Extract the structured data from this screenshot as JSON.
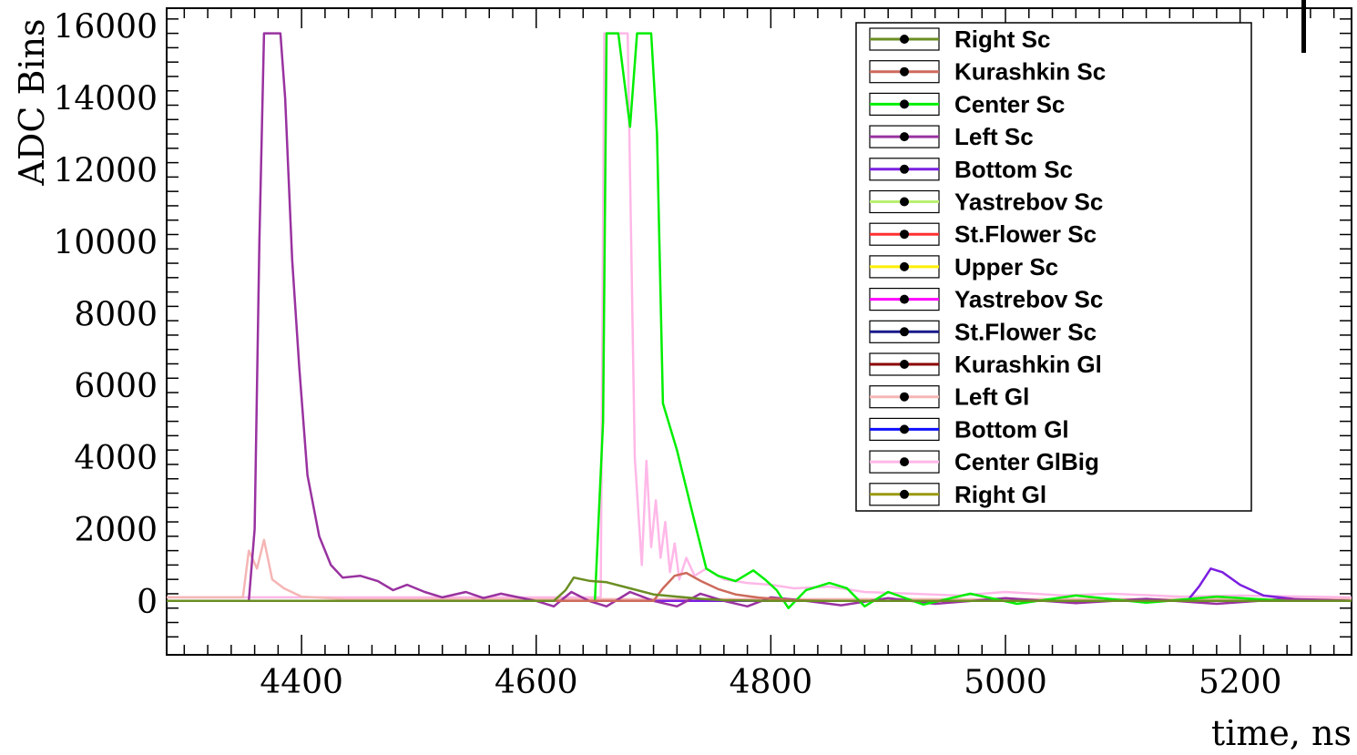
{
  "chart_data": {
    "type": "line",
    "xlabel": "time, ns",
    "ylabel": "ADC Bins",
    "xlim": [
      4285,
      5295
    ],
    "ylim": [
      -1500,
      16500
    ],
    "x_ticks": [
      4400,
      4600,
      4800,
      5000,
      5200
    ],
    "y_ticks": [
      0,
      2000,
      4000,
      6000,
      8000,
      10000,
      12000,
      14000,
      16000
    ],
    "x_tick_labels": [
      "4400",
      "4600",
      "4800",
      "5000",
      "5200"
    ],
    "y_tick_labels": [
      "0",
      "2000",
      "4000",
      "6000",
      "8000",
      "10000",
      "12000",
      "14000",
      "16000"
    ],
    "grid": false,
    "legend_position": "top-right",
    "series": [
      {
        "name": "Right Sc",
        "color": "#6b8e23",
        "points": [
          [
            4285,
            0
          ],
          [
            4615,
            0
          ],
          [
            4625,
            300
          ],
          [
            4632,
            650
          ],
          [
            4645,
            560
          ],
          [
            4660,
            520
          ],
          [
            4680,
            350
          ],
          [
            4700,
            180
          ],
          [
            4720,
            120
          ],
          [
            4740,
            60
          ],
          [
            4760,
            20
          ],
          [
            4800,
            0
          ],
          [
            5295,
            0
          ]
        ]
      },
      {
        "name": "Kurashkin Sc",
        "color": "#cd6a5c",
        "points": [
          [
            4285,
            0
          ],
          [
            4700,
            0
          ],
          [
            4708,
            350
          ],
          [
            4718,
            700
          ],
          [
            4728,
            780
          ],
          [
            4740,
            560
          ],
          [
            4755,
            330
          ],
          [
            4770,
            180
          ],
          [
            4790,
            90
          ],
          [
            4820,
            20
          ],
          [
            4850,
            0
          ],
          [
            5295,
            0
          ]
        ]
      },
      {
        "name": "Center Sc",
        "color": "#00ee00",
        "points": [
          [
            4285,
            0
          ],
          [
            4650,
            0
          ],
          [
            4657,
            5000
          ],
          [
            4660,
            15800
          ],
          [
            4670,
            15800
          ],
          [
            4680,
            13200
          ],
          [
            4686,
            15800
          ],
          [
            4698,
            15800
          ],
          [
            4703,
            13000
          ],
          [
            4708,
            5500
          ],
          [
            4720,
            4200
          ],
          [
            4735,
            2200
          ],
          [
            4745,
            900
          ],
          [
            4755,
            700
          ],
          [
            4770,
            550
          ],
          [
            4785,
            850
          ],
          [
            4795,
            600
          ],
          [
            4805,
            300
          ],
          [
            4815,
            -200
          ],
          [
            4830,
            300
          ],
          [
            4850,
            500
          ],
          [
            4865,
            350
          ],
          [
            4880,
            -150
          ],
          [
            4900,
            250
          ],
          [
            4930,
            -100
          ],
          [
            4970,
            200
          ],
          [
            5010,
            -80
          ],
          [
            5060,
            150
          ],
          [
            5120,
            -50
          ],
          [
            5180,
            120
          ],
          [
            5240,
            0
          ],
          [
            5295,
            0
          ]
        ]
      },
      {
        "name": "Left Sc",
        "color": "#9932a0",
        "points": [
          [
            4285,
            0
          ],
          [
            4355,
            0
          ],
          [
            4360,
            2000
          ],
          [
            4364,
            10000
          ],
          [
            4368,
            15800
          ],
          [
            4382,
            15800
          ],
          [
            4386,
            14000
          ],
          [
            4392,
            9500
          ],
          [
            4398,
            6500
          ],
          [
            4405,
            3500
          ],
          [
            4415,
            1800
          ],
          [
            4425,
            1000
          ],
          [
            4435,
            650
          ],
          [
            4450,
            700
          ],
          [
            4465,
            550
          ],
          [
            4478,
            300
          ],
          [
            4490,
            450
          ],
          [
            4505,
            250
          ],
          [
            4520,
            100
          ],
          [
            4540,
            250
          ],
          [
            4555,
            80
          ],
          [
            4570,
            200
          ],
          [
            4585,
            100
          ],
          [
            4600,
            0
          ],
          [
            4615,
            -150
          ],
          [
            4630,
            250
          ],
          [
            4645,
            0
          ],
          [
            4660,
            -150
          ],
          [
            4680,
            250
          ],
          [
            4700,
            0
          ],
          [
            4720,
            -150
          ],
          [
            4740,
            200
          ],
          [
            4760,
            0
          ],
          [
            4780,
            -150
          ],
          [
            4800,
            100
          ],
          [
            4830,
            0
          ],
          [
            4860,
            -120
          ],
          [
            4900,
            80
          ],
          [
            4940,
            -80
          ],
          [
            5000,
            80
          ],
          [
            5060,
            -60
          ],
          [
            5120,
            60
          ],
          [
            5180,
            -80
          ],
          [
            5240,
            60
          ],
          [
            5295,
            0
          ]
        ]
      },
      {
        "name": "Bottom Sc",
        "color": "#7b1fe0",
        "points": [
          [
            4285,
            0
          ],
          [
            5155,
            0
          ],
          [
            5165,
            400
          ],
          [
            5175,
            900
          ],
          [
            5185,
            800
          ],
          [
            5200,
            450
          ],
          [
            5220,
            150
          ],
          [
            5250,
            40
          ],
          [
            5295,
            0
          ]
        ]
      },
      {
        "name": "Yastrebov Sc",
        "color": "#b8f070",
        "points": [
          [
            4285,
            0
          ],
          [
            5295,
            0
          ]
        ]
      },
      {
        "name": "St.Flower Sc",
        "color": "#ff3030",
        "points": [
          [
            4285,
            0
          ],
          [
            5295,
            0
          ]
        ]
      },
      {
        "name": "Upper Sc",
        "color": "#ffee00",
        "points": [
          [
            4285,
            0
          ],
          [
            5295,
            0
          ]
        ]
      },
      {
        "name": "Yastrebov Sc",
        "color": "#ff00ff",
        "points": [
          [
            4285,
            0
          ],
          [
            5295,
            0
          ]
        ]
      },
      {
        "name": "St.Flower Sc",
        "color": "#1a1a8a",
        "points": [
          [
            4285,
            0
          ],
          [
            5295,
            0
          ]
        ]
      },
      {
        "name": "Kurashkin Gl",
        "color": "#8b0000",
        "points": [
          [
            4285,
            0
          ],
          [
            5295,
            0
          ]
        ]
      },
      {
        "name": "Left Gl",
        "color": "#f5b5b5",
        "points": [
          [
            4285,
            100
          ],
          [
            4350,
            100
          ],
          [
            4355,
            1400
          ],
          [
            4362,
            900
          ],
          [
            4368,
            1700
          ],
          [
            4375,
            600
          ],
          [
            4385,
            350
          ],
          [
            4400,
            120
          ],
          [
            4440,
            50
          ],
          [
            5295,
            50
          ]
        ]
      },
      {
        "name": "Bottom Gl",
        "color": "#1111ff",
        "points": [
          [
            4285,
            0
          ],
          [
            5295,
            0
          ]
        ]
      },
      {
        "name": "Center GlBig",
        "color": "#ffb8e8",
        "points": [
          [
            4285,
            100
          ],
          [
            4655,
            100
          ],
          [
            4658,
            15800
          ],
          [
            4678,
            15800
          ],
          [
            4684,
            4000
          ],
          [
            4690,
            1000
          ],
          [
            4694,
            3900
          ],
          [
            4698,
            1500
          ],
          [
            4702,
            2800
          ],
          [
            4706,
            1200
          ],
          [
            4710,
            2200
          ],
          [
            4714,
            800
          ],
          [
            4718,
            1600
          ],
          [
            4722,
            600
          ],
          [
            4728,
            1200
          ],
          [
            4735,
            700
          ],
          [
            4745,
            900
          ],
          [
            4760,
            600
          ],
          [
            4780,
            500
          ],
          [
            4800,
            450
          ],
          [
            4820,
            350
          ],
          [
            4850,
            400
          ],
          [
            4880,
            250
          ],
          [
            4920,
            200
          ],
          [
            4960,
            150
          ],
          [
            5000,
            250
          ],
          [
            5050,
            150
          ],
          [
            5090,
            200
          ],
          [
            5150,
            120
          ],
          [
            5200,
            150
          ],
          [
            5295,
            100
          ]
        ]
      },
      {
        "name": "Right Gl",
        "color": "#9a9a10",
        "points": [
          [
            4285,
            0
          ],
          [
            5295,
            0
          ]
        ]
      }
    ]
  }
}
